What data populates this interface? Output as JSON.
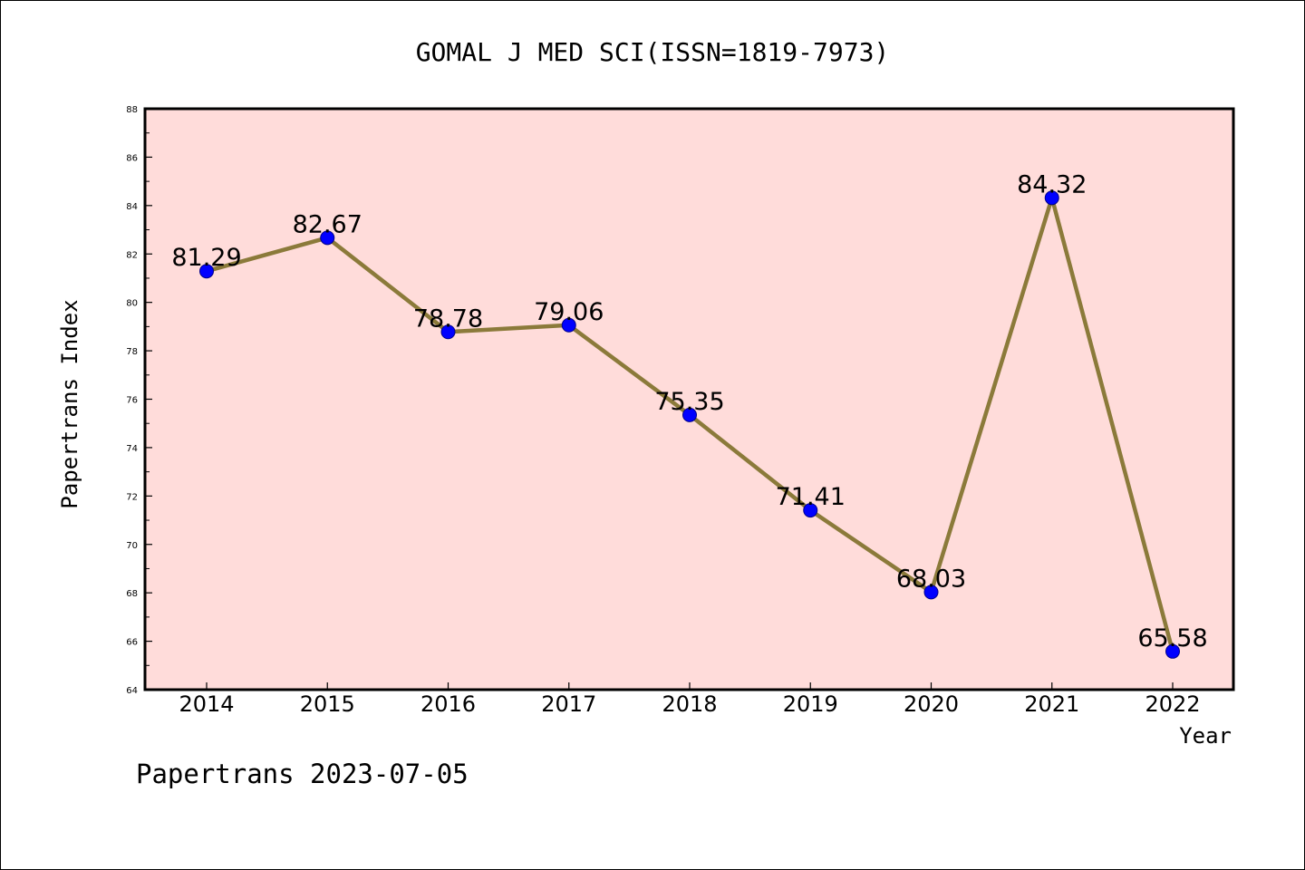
{
  "chart_data": {
    "type": "line",
    "title": "GOMAL J MED SCI(ISSN=1819-7973)",
    "xlabel": "Year",
    "ylabel": "Papertrans Index",
    "categories": [
      "2014",
      "2015",
      "2016",
      "2017",
      "2018",
      "2019",
      "2020",
      "2021",
      "2022"
    ],
    "series": [
      {
        "values": [
          81.29,
          82.67,
          78.78,
          79.06,
          75.35,
          71.41,
          68.03,
          84.32,
          65.58
        ],
        "labels": [
          "81.29",
          "82.67",
          "78.78",
          "79.06",
          "75.35",
          "71.41",
          "68.03",
          "84.32",
          "65.58"
        ]
      }
    ],
    "ylim": [
      64,
      88
    ],
    "yticks": [
      "64",
      "66",
      "68",
      "70",
      "72",
      "74",
      "76",
      "78",
      "80",
      "82",
      "84",
      "86",
      "88"
    ],
    "grid": false,
    "colors": {
      "plot_background": "#ffdcda",
      "line": "#8b7a3a",
      "marker": "#0000ff"
    }
  },
  "footer": {
    "credit": "Papertrans 2023-07-05"
  }
}
